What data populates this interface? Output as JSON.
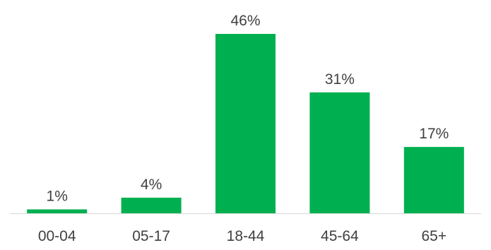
{
  "chart_data": {
    "type": "bar",
    "categories": [
      "00-04",
      "05-17",
      "18-44",
      "45-64",
      "65+"
    ],
    "values": [
      1,
      4,
      46,
      31,
      17
    ],
    "data_labels": [
      "1%",
      "4%",
      "46%",
      "31%",
      "17%"
    ],
    "title": "",
    "xlabel": "",
    "ylabel": "",
    "ylim": [
      0,
      46
    ],
    "grid": false,
    "legend": "none",
    "bar_color": "#00B050",
    "axis_color": "#D9D9D9",
    "text_color": "#404040"
  }
}
